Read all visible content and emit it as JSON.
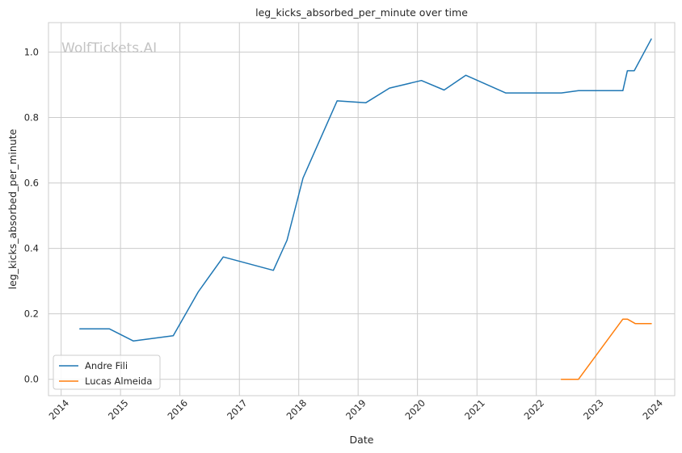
{
  "chart_data": {
    "type": "line",
    "title": "leg_kicks_absorbed_per_minute over time",
    "xlabel": "Date",
    "ylabel": "leg_kicks_absorbed_per_minute",
    "watermark": "WolfTickets.AI",
    "x_ticks": [
      "2014",
      "2015",
      "2016",
      "2017",
      "2018",
      "2019",
      "2020",
      "2021",
      "2022",
      "2023",
      "2024"
    ],
    "y_ticks": [
      "0.0",
      "0.2",
      "0.4",
      "0.6",
      "0.8",
      "1.0"
    ],
    "xlim": [
      "2013-10-15",
      "2024-05-01"
    ],
    "ylim": [
      -0.05,
      1.09
    ],
    "grid": true,
    "legend_position": "lower-left",
    "series": [
      {
        "name": "Andre Fili",
        "color": "#1f77b4",
        "points": [
          [
            "2014-04-26",
            0.154
          ],
          [
            "2014-10-25",
            0.154
          ],
          [
            "2015-03-21",
            0.117
          ],
          [
            "2015-11-21",
            0.133
          ],
          [
            "2016-04-23",
            0.267
          ],
          [
            "2016-09-24",
            0.374
          ],
          [
            "2017-07-29",
            0.333
          ],
          [
            "2017-10-21",
            0.425
          ],
          [
            "2018-01-27",
            0.615
          ],
          [
            "2018-08-25",
            0.851
          ],
          [
            "2019-02-17",
            0.845
          ],
          [
            "2019-07-13",
            0.89
          ],
          [
            "2020-01-25",
            0.913
          ],
          [
            "2020-06-13",
            0.884
          ],
          [
            "2020-10-24",
            0.929
          ],
          [
            "2021-06-26",
            0.875
          ],
          [
            "2022-06-04",
            0.875
          ],
          [
            "2022-09-17",
            0.882
          ],
          [
            "2023-06-17",
            0.882
          ],
          [
            "2023-07-15",
            0.943
          ],
          [
            "2023-08-26",
            0.943
          ],
          [
            "2023-12-09",
            1.04
          ]
        ]
      },
      {
        "name": "Lucas Almeida",
        "color": "#ff7f0e",
        "points": [
          [
            "2022-06-04",
            0.0
          ],
          [
            "2022-09-17",
            0.0
          ],
          [
            "2023-06-17",
            0.184
          ],
          [
            "2023-07-15",
            0.184
          ],
          [
            "2023-09-02",
            0.17
          ],
          [
            "2023-12-09",
            0.17
          ]
        ]
      }
    ]
  }
}
